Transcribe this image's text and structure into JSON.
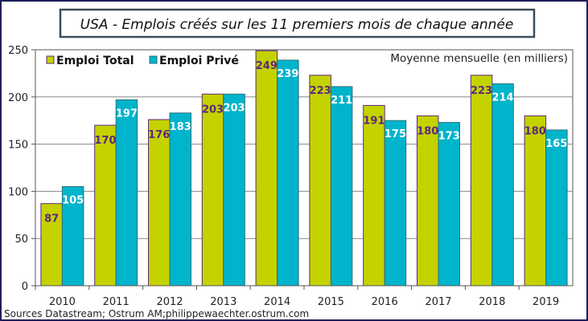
{
  "chart_data": {
    "type": "bar",
    "title": "USA - Emplois  créés sur les 11 premiers mois de chaque année",
    "annotation": "Moyenne mensuelle (en milliers)",
    "source": "Sources Datastream; Ostrum AM;philippewaechter.ostrum.com",
    "categories": [
      "2010",
      "2011",
      "2012",
      "2013",
      "2014",
      "2015",
      "2016",
      "2017",
      "2018",
      "2019"
    ],
    "series": [
      {
        "name": "Emploi Total",
        "color": "#c4d200",
        "label_color": "#5b2a78",
        "values": [
          87,
          170,
          176,
          203,
          249,
          223,
          191,
          180,
          223,
          180
        ]
      },
      {
        "name": "Emploi Privé",
        "color": "#00b4cc",
        "label_color": "#ffffff",
        "values": [
          105,
          197,
          183,
          203,
          239,
          211,
          175,
          173,
          214,
          165
        ]
      }
    ],
    "ylim": [
      0,
      250
    ],
    "yticks": [
      0,
      50,
      100,
      150,
      200,
      250
    ],
    "grid": true,
    "legend": "top-left",
    "xlabel": "",
    "ylabel": ""
  }
}
